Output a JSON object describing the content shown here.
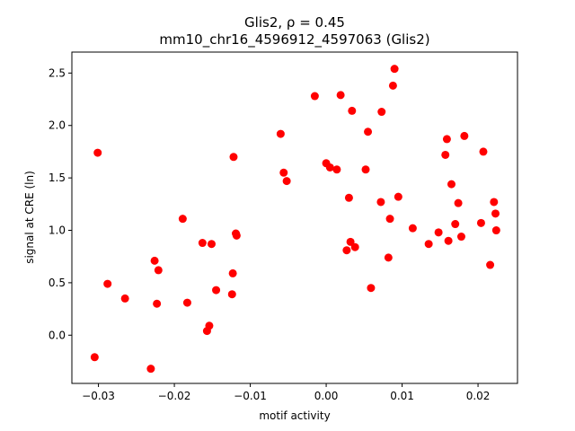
{
  "chart_data": {
    "type": "scatter",
    "title_line1": "Glis2, ρ = 0.45",
    "title_line2": "mm10_chr16_4596912_4597063 (Glis2)",
    "xlabel": "motif activity",
    "ylabel": "signal at CRE (ln)",
    "xlim": [
      -0.0335,
      0.0252
    ],
    "ylim": [
      -0.46,
      2.7
    ],
    "xticks": [
      -0.03,
      -0.02,
      -0.01,
      0.0,
      0.01,
      0.02
    ],
    "xtick_labels": [
      "−0.03",
      "−0.02",
      "−0.01",
      "0.00",
      "0.01",
      "0.02"
    ],
    "yticks": [
      0.0,
      0.5,
      1.0,
      1.5,
      2.0,
      2.5
    ],
    "ytick_labels": [
      "0.0",
      "0.5",
      "1.0",
      "1.5",
      "2.0",
      "2.5"
    ],
    "grid": false,
    "marker_color": "#ff0000",
    "points": [
      {
        "x": -0.0305,
        "y": -0.21
      },
      {
        "x": -0.0301,
        "y": 1.74
      },
      {
        "x": -0.0288,
        "y": 0.49
      },
      {
        "x": -0.0265,
        "y": 0.35
      },
      {
        "x": -0.0231,
        "y": -0.32
      },
      {
        "x": -0.0226,
        "y": 0.71
      },
      {
        "x": -0.0223,
        "y": 0.3
      },
      {
        "x": -0.0221,
        "y": 0.62
      },
      {
        "x": -0.0189,
        "y": 1.11
      },
      {
        "x": -0.0183,
        "y": 0.31
      },
      {
        "x": -0.0163,
        "y": 0.88
      },
      {
        "x": -0.0157,
        "y": 0.04
      },
      {
        "x": -0.0154,
        "y": 0.09
      },
      {
        "x": -0.0151,
        "y": 0.87
      },
      {
        "x": -0.0145,
        "y": 0.43
      },
      {
        "x": -0.0124,
        "y": 0.39
      },
      {
        "x": -0.0123,
        "y": 0.59
      },
      {
        "x": -0.0122,
        "y": 1.7
      },
      {
        "x": -0.0119,
        "y": 0.97
      },
      {
        "x": -0.0118,
        "y": 0.95
      },
      {
        "x": -0.006,
        "y": 1.92
      },
      {
        "x": -0.0056,
        "y": 1.55
      },
      {
        "x": -0.0052,
        "y": 1.47
      },
      {
        "x": -0.0015,
        "y": 2.28
      },
      {
        "x": 0.0,
        "y": 1.64
      },
      {
        "x": 0.0005,
        "y": 1.6
      },
      {
        "x": 0.0014,
        "y": 1.58
      },
      {
        "x": 0.0019,
        "y": 2.29
      },
      {
        "x": 0.0027,
        "y": 0.81
      },
      {
        "x": 0.003,
        "y": 1.31
      },
      {
        "x": 0.0032,
        "y": 0.89
      },
      {
        "x": 0.0034,
        "y": 2.14
      },
      {
        "x": 0.0038,
        "y": 0.84
      },
      {
        "x": 0.0052,
        "y": 1.58
      },
      {
        "x": 0.0055,
        "y": 1.94
      },
      {
        "x": 0.0059,
        "y": 0.45
      },
      {
        "x": 0.0072,
        "y": 1.27
      },
      {
        "x": 0.0073,
        "y": 2.13
      },
      {
        "x": 0.0082,
        "y": 0.74
      },
      {
        "x": 0.0084,
        "y": 1.11
      },
      {
        "x": 0.0088,
        "y": 2.38
      },
      {
        "x": 0.009,
        "y": 2.54
      },
      {
        "x": 0.0095,
        "y": 1.32
      },
      {
        "x": 0.0114,
        "y": 1.02
      },
      {
        "x": 0.0135,
        "y": 0.87
      },
      {
        "x": 0.0148,
        "y": 0.98
      },
      {
        "x": 0.0157,
        "y": 1.72
      },
      {
        "x": 0.0159,
        "y": 1.87
      },
      {
        "x": 0.0161,
        "y": 0.9
      },
      {
        "x": 0.0165,
        "y": 1.44
      },
      {
        "x": 0.017,
        "y": 1.06
      },
      {
        "x": 0.0174,
        "y": 1.26
      },
      {
        "x": 0.0178,
        "y": 0.94
      },
      {
        "x": 0.0182,
        "y": 1.9
      },
      {
        "x": 0.0204,
        "y": 1.07
      },
      {
        "x": 0.0207,
        "y": 1.75
      },
      {
        "x": 0.0216,
        "y": 0.67
      },
      {
        "x": 0.0221,
        "y": 1.27
      },
      {
        "x": 0.0223,
        "y": 1.16
      },
      {
        "x": 0.0224,
        "y": 1.0
      }
    ]
  }
}
